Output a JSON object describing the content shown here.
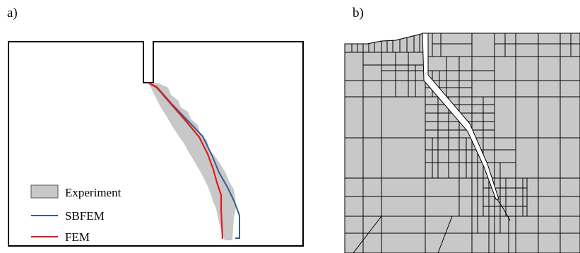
{
  "panels": {
    "a": {
      "label": "a)"
    },
    "b": {
      "label": "b)"
    }
  },
  "legend": {
    "experiment": "Experiment",
    "sbfem": "SBFEM",
    "fem": "FEM"
  },
  "colors": {
    "experiment_fill": "#c8c8c8",
    "sbfem": "#2f5f96",
    "fem": "#e41a1c",
    "mesh_fill": "#c8c8c8",
    "mesh_line": "#000000"
  }
}
